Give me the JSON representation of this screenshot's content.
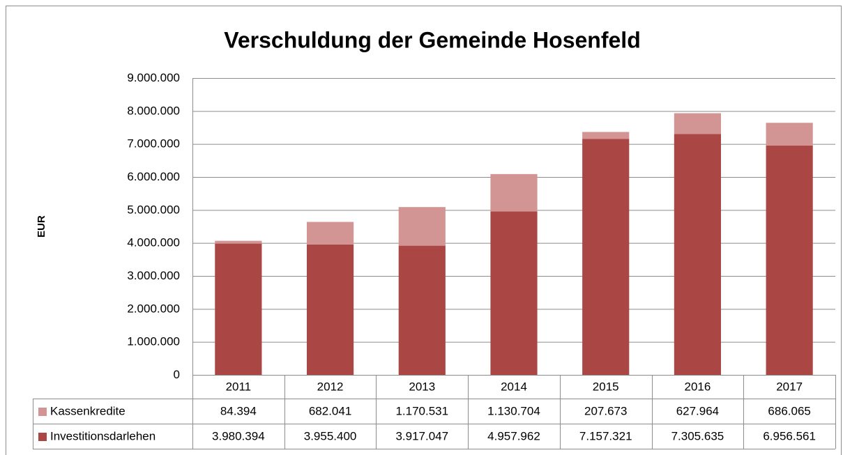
{
  "chart_data": {
    "type": "stacked-bar",
    "title": "Verschuldung der Gemeinde Hosenfeld",
    "ylabel": "EUR",
    "categories": [
      "2011",
      "2012",
      "2013",
      "2014",
      "2015",
      "2016",
      "2017"
    ],
    "series": [
      {
        "name": "Kassenkredite",
        "color": "#d39594",
        "values": [
          84394,
          682041,
          1170531,
          1130704,
          207673,
          627964,
          686065
        ],
        "value_labels": [
          "84.394",
          "682.041",
          "1.170.531",
          "1.130.704",
          "207.673",
          "627.964",
          "686.065"
        ]
      },
      {
        "name": "Investitionsdarlehen",
        "color": "#aa4745",
        "values": [
          3980394,
          3955400,
          3917047,
          4957962,
          7157321,
          7305635,
          6956561
        ],
        "value_labels": [
          "3.980.394",
          "3.955.400",
          "3.917.047",
          "4.957.962",
          "7.157.321",
          "7.305.635",
          "6.956.561"
        ]
      }
    ],
    "ylim": [
      0,
      9000000
    ],
    "yticks": [
      0,
      {
        "value": 1000000,
        "label": "1.000.000"
      },
      {
        "value": 2000000,
        "label": "2.000.000"
      },
      {
        "value": 3000000,
        "label": "3.000.000"
      },
      {
        "value": 4000000,
        "label": "4.000.000"
      },
      {
        "value": 5000000,
        "label": "5.000.000"
      },
      {
        "value": 6000000,
        "label": "6.000.000"
      },
      {
        "value": 7000000,
        "label": "7.000.000"
      },
      {
        "value": 8000000,
        "label": "8.000.000"
      },
      {
        "value": 9000000,
        "label": "9.000.000"
      }
    ],
    "grid": true
  }
}
